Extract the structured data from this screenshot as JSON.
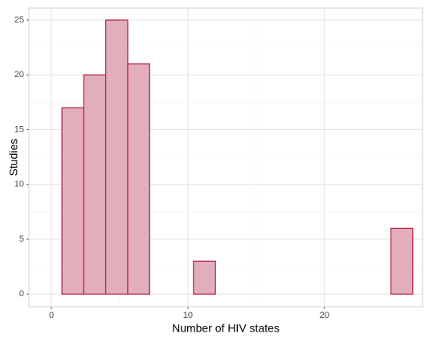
{
  "chart_data": {
    "type": "histogram",
    "x_label": "Number of HIV states",
    "y_label": "Studies",
    "bins": [
      0.77,
      2.37,
      3.98,
      5.59,
      7.2,
      8.8,
      10.41,
      12.02,
      13.62,
      15.23,
      16.84,
      18.45,
      20.05,
      21.66,
      23.27,
      24.88,
      26.48
    ],
    "values": [
      17,
      20,
      25,
      21,
      0,
      0,
      3,
      0,
      0,
      0,
      0,
      0,
      0,
      0,
      0,
      6
    ],
    "fill": "#e2aebb",
    "edge_color": "#b8284f",
    "xlim": [
      -1.65,
      27.2
    ],
    "xticks": [
      0,
      10,
      20
    ],
    "ylim": [
      -1.15,
      26.1
    ],
    "yticks": [
      0,
      5,
      10,
      15,
      20,
      25
    ],
    "grid": true
  }
}
